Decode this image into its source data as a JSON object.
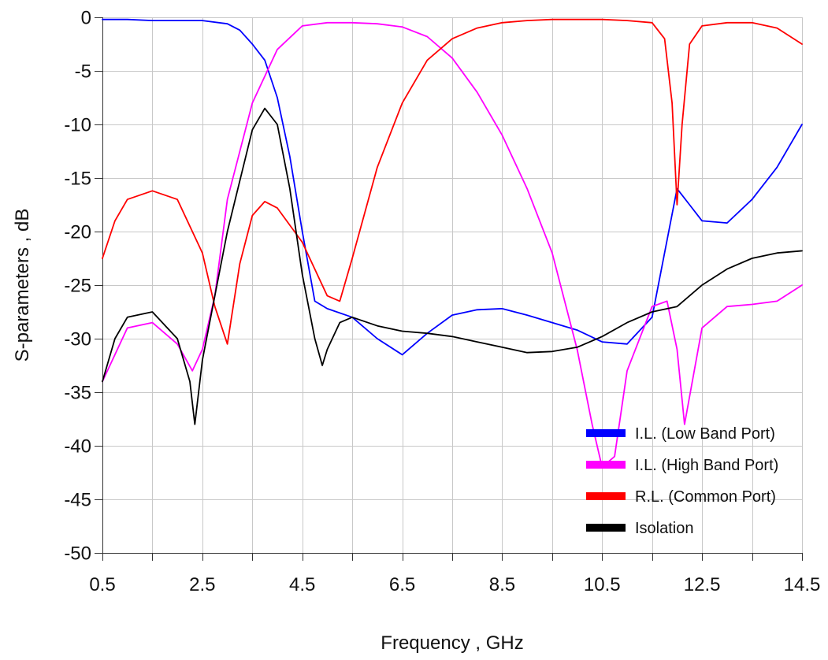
{
  "chart_data": {
    "type": "line",
    "xlabel": "Frequency , GHz",
    "ylabel": "S-parameters , dB",
    "xlim": [
      0.5,
      14.5
    ],
    "ylim": [
      -50,
      0
    ],
    "xticks": [
      0.5,
      2.5,
      4.5,
      6.5,
      8.5,
      10.5,
      12.5,
      14.5
    ],
    "xtick_labels": [
      "0.5",
      "2.5",
      "4.5",
      "6.5",
      "8.5",
      "10.5",
      "12.5",
      "14.5"
    ],
    "yticks": [
      0,
      -5,
      -10,
      -15,
      -20,
      -25,
      -30,
      -35,
      -40,
      -45,
      -50
    ],
    "ytick_labels": [
      "0",
      "-5",
      "-10",
      "-15",
      "-20",
      "-25",
      "-30",
      "-35",
      "-40",
      "-45",
      "-50"
    ],
    "grid": true,
    "legend_position": "bottom-right",
    "series": [
      {
        "name": "I.L. (Low Band Port)",
        "color": "#0000ff",
        "x": [
          0.5,
          1.0,
          1.5,
          2.0,
          2.5,
          3.0,
          3.25,
          3.5,
          3.75,
          4.0,
          4.25,
          4.5,
          4.75,
          5.0,
          5.5,
          6.0,
          6.5,
          7.0,
          7.5,
          8.0,
          8.5,
          9.0,
          9.5,
          10.0,
          10.5,
          11.0,
          11.5,
          12.0,
          12.25,
          12.5,
          13.0,
          13.5,
          14.0,
          14.5
        ],
        "y": [
          -0.2,
          -0.2,
          -0.3,
          -0.3,
          -0.3,
          -0.6,
          -1.2,
          -2.5,
          -4.0,
          -7.5,
          -13.0,
          -20.0,
          -26.5,
          -27.2,
          -28.0,
          -30.0,
          -31.5,
          -29.5,
          -27.8,
          -27.3,
          -27.2,
          -27.8,
          -28.5,
          -29.2,
          -30.3,
          -30.5,
          -28.0,
          -16.0,
          -17.5,
          -19.0,
          -19.2,
          -17.0,
          -14.0,
          -10.0
        ]
      },
      {
        "name": "I.L. (High Band Port)",
        "color": "#ff00ff",
        "x": [
          0.5,
          1.0,
          1.5,
          2.0,
          2.3,
          2.5,
          2.75,
          3.0,
          3.5,
          4.0,
          4.5,
          5.0,
          5.5,
          6.0,
          6.5,
          7.0,
          7.5,
          8.0,
          8.5,
          9.0,
          9.5,
          10.0,
          10.3,
          10.5,
          10.75,
          11.0,
          11.5,
          11.8,
          12.0,
          12.15,
          12.5,
          13.0,
          13.5,
          14.0,
          14.5
        ],
        "y": [
          -34.0,
          -29.0,
          -28.5,
          -30.5,
          -33.0,
          -31.0,
          -26.0,
          -17.0,
          -8.0,
          -3.0,
          -0.8,
          -0.5,
          -0.5,
          -0.6,
          -0.9,
          -1.8,
          -3.8,
          -7.0,
          -11.0,
          -16.0,
          -22.0,
          -31.0,
          -38.0,
          -42.0,
          -41.0,
          -33.0,
          -27.0,
          -26.5,
          -31.0,
          -38.0,
          -29.0,
          -27.0,
          -26.8,
          -26.5,
          -25.0
        ]
      },
      {
        "name": "R.L. (Common Port)",
        "color": "#ff0000",
        "x": [
          0.5,
          0.75,
          1.0,
          1.5,
          2.0,
          2.5,
          2.75,
          3.0,
          3.25,
          3.5,
          3.75,
          4.0,
          4.5,
          5.0,
          5.25,
          5.5,
          6.0,
          6.5,
          7.0,
          7.5,
          8.0,
          8.5,
          9.0,
          9.5,
          10.0,
          10.5,
          11.0,
          11.5,
          11.75,
          11.9,
          12.0,
          12.1,
          12.25,
          12.5,
          13.0,
          13.5,
          14.0,
          14.5
        ],
        "y": [
          -22.5,
          -19.0,
          -17.0,
          -16.2,
          -17.0,
          -22.0,
          -27.0,
          -30.5,
          -23.0,
          -18.5,
          -17.2,
          -17.8,
          -21.0,
          -26.0,
          -26.5,
          -22.5,
          -14.0,
          -8.0,
          -4.0,
          -2.0,
          -1.0,
          -0.5,
          -0.3,
          -0.2,
          -0.2,
          -0.2,
          -0.3,
          -0.5,
          -2.0,
          -8.0,
          -17.5,
          -10.0,
          -2.5,
          -0.8,
          -0.5,
          -0.5,
          -1.0,
          -2.5
        ]
      },
      {
        "name": "Isolation",
        "color": "#000000",
        "x": [
          0.5,
          0.75,
          1.0,
          1.5,
          2.0,
          2.25,
          2.35,
          2.5,
          2.75,
          3.0,
          3.5,
          3.75,
          4.0,
          4.25,
          4.5,
          4.75,
          4.9,
          5.0,
          5.25,
          5.5,
          6.0,
          6.5,
          7.0,
          7.5,
          8.0,
          8.5,
          9.0,
          9.5,
          10.0,
          10.5,
          11.0,
          11.5,
          12.0,
          12.5,
          13.0,
          13.5,
          14.0,
          14.5
        ],
        "y": [
          -34.0,
          -30.0,
          -28.0,
          -27.5,
          -30.0,
          -34.0,
          -38.0,
          -32.0,
          -26.0,
          -20.0,
          -10.5,
          -8.5,
          -10.0,
          -16.0,
          -24.0,
          -30.0,
          -32.5,
          -31.0,
          -28.5,
          -28.0,
          -28.8,
          -29.3,
          -29.5,
          -29.8,
          -30.3,
          -30.8,
          -31.3,
          -31.2,
          -30.8,
          -29.8,
          -28.5,
          -27.5,
          -27.0,
          -25.0,
          -23.5,
          -22.5,
          -22.0,
          -21.8
        ]
      }
    ]
  }
}
